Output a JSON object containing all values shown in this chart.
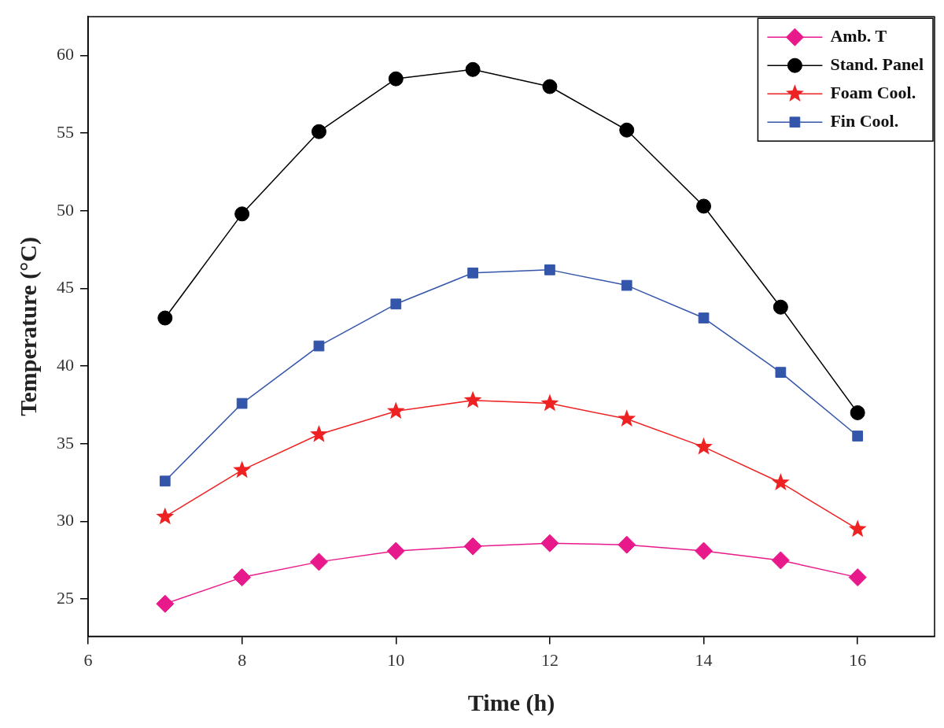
{
  "chart_data": {
    "type": "line",
    "xlabel": "Time (h)",
    "ylabel": "Temperature (°C)",
    "x": [
      7,
      8,
      9,
      10,
      11,
      12,
      13,
      14,
      15,
      16
    ],
    "xlim": [
      6,
      17
    ],
    "xticks": [
      6,
      8,
      10,
      12,
      14,
      16
    ],
    "ylim": [
      22.6,
      62.5
    ],
    "yticks": [
      25,
      30,
      35,
      40,
      45,
      50,
      55,
      60
    ],
    "grid": false,
    "legend": "top right",
    "line_style": "solid",
    "series": [
      {
        "name": "Amb. T",
        "color": "#e8198b",
        "marker": "diamond",
        "values": [
          24.7,
          26.4,
          27.4,
          28.1,
          28.4,
          28.6,
          28.5,
          28.1,
          27.5,
          26.4
        ]
      },
      {
        "name": "Stand. Panel",
        "color": "#000000",
        "marker": "circle",
        "values": [
          43.1,
          49.8,
          55.1,
          58.5,
          59.1,
          58.0,
          55.2,
          50.3,
          43.8,
          37.0
        ]
      },
      {
        "name": "Foam Cool.",
        "color": "#ee2222",
        "marker": "star",
        "values": [
          30.3,
          33.3,
          35.6,
          37.1,
          37.8,
          37.6,
          36.6,
          34.8,
          32.5,
          29.5
        ]
      },
      {
        "name": "Fin Cool.",
        "color": "#3355aa",
        "marker": "square",
        "values": [
          32.6,
          37.6,
          41.3,
          44.0,
          46.0,
          46.2,
          45.2,
          43.1,
          39.6,
          35.5
        ]
      }
    ]
  }
}
